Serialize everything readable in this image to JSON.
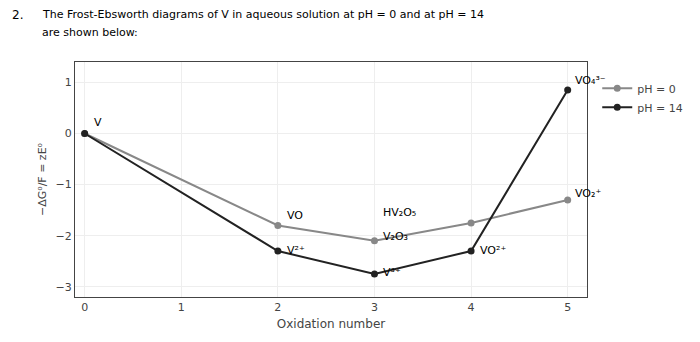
{
  "chart_data": {
    "type": "line",
    "title": "The Frost-Ebsworth diagrams of V in aqueous solution at pH = 0 and at pH = 14",
    "subtitle": "are shown below:",
    "x_label": "Oxidation number",
    "y_label": "−ΔG⁰/F = zE⁰",
    "x": [
      0,
      2,
      3,
      4,
      5
    ],
    "series": [
      {
        "name": "pH = 0",
        "color": "#888888",
        "marker": "circle",
        "values": [
          0.0,
          -1.8,
          -2.1,
          -1.75,
          -1.3
        ]
      },
      {
        "name": "pH = 14",
        "color": "#222222",
        "marker": "circle",
        "values": [
          0.0,
          -2.3,
          -2.75,
          -2.3,
          0.85
        ]
      }
    ],
    "xlim": [
      -0.1,
      5.2
    ],
    "ylim": [
      -3.2,
      1.4
    ],
    "xticks": [
      0,
      1,
      2,
      3,
      4,
      5
    ],
    "yticks": [
      -3,
      -2,
      -1,
      0,
      1
    ],
    "grid": true,
    "legend": "upper right",
    "annotations": [
      {
        "text": "2."
      },
      {
        "text": "V",
        "x": 0.08,
        "y": 0.05
      },
      {
        "text": "VO",
        "x": 2.07,
        "y": -1.78
      },
      {
        "text": "V₂O₃",
        "x": 3.07,
        "y": -2.18
      },
      {
        "text": "HV₂O₅",
        "x": 3.07,
        "y": -1.72
      },
      {
        "text": "VO₂⁺",
        "x": 5.05,
        "y": -1.35
      },
      {
        "text": "V²⁺",
        "x": 2.07,
        "y": -2.45
      },
      {
        "text": "V³⁺",
        "x": 3.07,
        "y": -2.88
      },
      {
        "text": "VO²⁺",
        "x": 4.07,
        "y": -2.45
      },
      {
        "text": "VO₄³⁻",
        "x": 5.05,
        "y": 0.88
      }
    ]
  }
}
